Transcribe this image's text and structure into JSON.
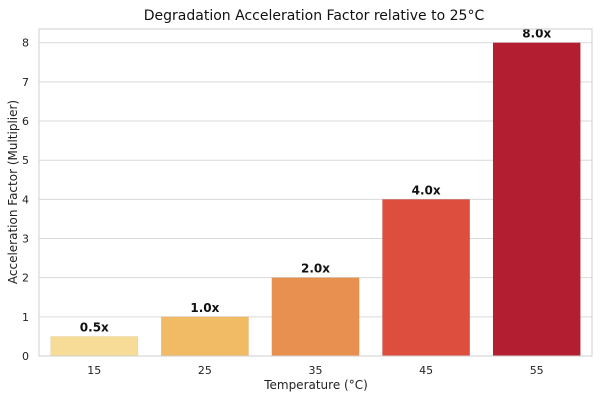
{
  "chart_data": {
    "type": "bar",
    "title": "Degradation Acceleration Factor relative to 25°C",
    "xlabel": "Temperature (°C)",
    "ylabel": "Acceleration Factor (Multiplier)",
    "categories": [
      "15",
      "25",
      "35",
      "45",
      "55"
    ],
    "values": [
      0.5,
      1.0,
      2.0,
      4.0,
      8.0
    ],
    "data_labels": [
      "0.5x",
      "1.0x",
      "2.0x",
      "4.0x",
      "8.0x"
    ],
    "colors": [
      "#f6dc97",
      "#f0bb64",
      "#e8904f",
      "#dd4e3e",
      "#b31e30"
    ],
    "ylim": [
      0,
      8.35
    ],
    "yticks": [
      "0",
      "1",
      "2",
      "3",
      "4",
      "5",
      "6",
      "7",
      "8"
    ],
    "grid": true,
    "legend": "none"
  }
}
